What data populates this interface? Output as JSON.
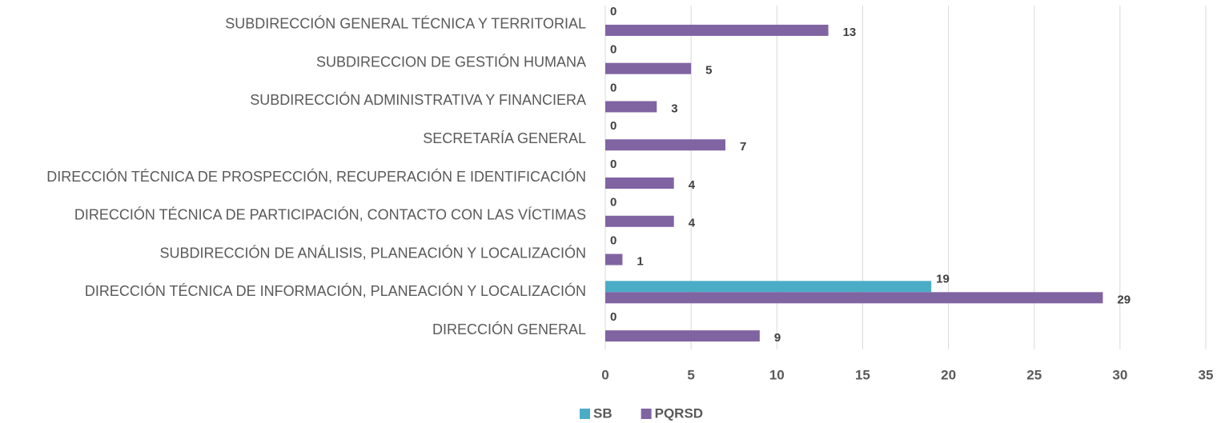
{
  "chart_data": {
    "type": "hbar",
    "categories": [
      "SUBDIRECCIÓN GENERAL TÉCNICA Y TERRITORIAL",
      "SUBDIRECCION DE GESTIÓN HUMANA",
      "SUBDIRECCIÓN ADMINISTRATIVA Y FINANCIERA",
      "SECRETARÍA GENERAL",
      "DIRECCIÓN TÉCNICA DE PROSPECCIÓN, RECUPERACIÓN E IDENTIFICACIÓN",
      "DIRECCIÓN TÉCNICA DE PARTICIPACIÓN, CONTACTO CON LAS VÍCTIMAS",
      "SUBDIRECCIÓN DE ANÁLISIS, PLANEACIÓN Y LOCALIZACIÓN",
      "DIRECCIÓN TÉCNICA DE INFORMACIÓN, PLANEACIÓN Y LOCALIZACIÓN",
      "DIRECCIÓN GENERAL"
    ],
    "series": [
      {
        "name": "SB",
        "color": "#4bacc6",
        "values": [
          0,
          0,
          0,
          0,
          0,
          0,
          0,
          19,
          0
        ]
      },
      {
        "name": "PQRSD",
        "color": "#8064a2",
        "values": [
          13,
          5,
          3,
          7,
          4,
          4,
          1,
          29,
          9
        ]
      }
    ],
    "xlim": [
      0,
      35
    ],
    "xticks": [
      0,
      5,
      10,
      15,
      20,
      25,
      30,
      35
    ],
    "grid": true,
    "legend": "bottom"
  }
}
